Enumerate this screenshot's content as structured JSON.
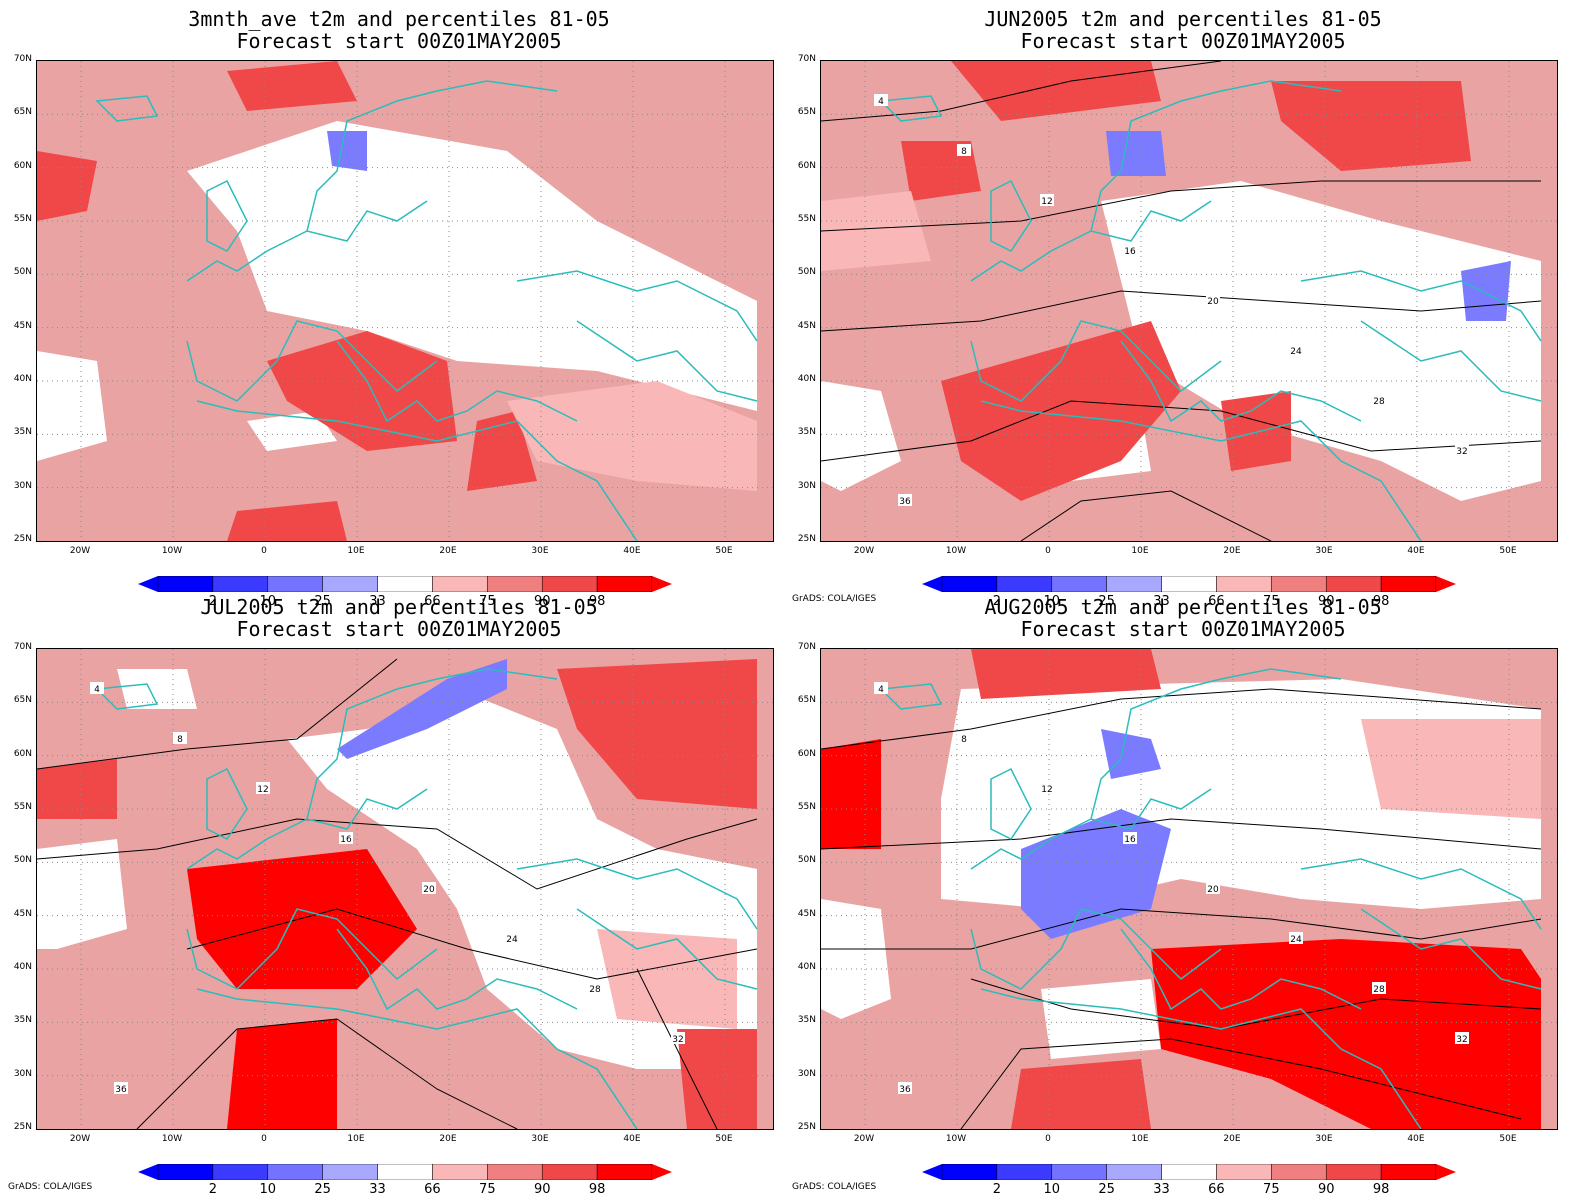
{
  "panels": [
    {
      "title": "3mnth_ave t2m and percentiles 81-05",
      "subtitle": "Forecast start 00Z01MAY2005",
      "credit": "",
      "contour_labels": []
    },
    {
      "title": "JUN2005 t2m and percentiles 81-05",
      "subtitle": "Forecast start 00Z01MAY2005",
      "credit": "GrADS: COLA/IGES",
      "contour_labels": [
        "4",
        "8",
        "12",
        "16",
        "20",
        "24",
        "28",
        "32",
        "36"
      ]
    },
    {
      "title": "JUL2005 t2m and percentiles 81-05",
      "subtitle": "Forecast start 00Z01MAY2005",
      "credit": "GrADS: COLA/IGES",
      "contour_labels": [
        "4",
        "8",
        "12",
        "16",
        "20",
        "24",
        "28",
        "32",
        "36"
      ]
    },
    {
      "title": "AUG2005 t2m and percentiles 81-05",
      "subtitle": "Forecast start 00Z01MAY2005",
      "credit": "GrADS: COLA/IGES",
      "contour_labels": [
        "4",
        "8",
        "12",
        "16",
        "20",
        "24",
        "28",
        "32",
        "36"
      ]
    }
  ],
  "axes": {
    "lat_labels": [
      "70N",
      "65N",
      "60N",
      "55N",
      "50N",
      "45N",
      "40N",
      "35N",
      "30N",
      "25N"
    ],
    "lon_labels": [
      "20W",
      "10W",
      "0",
      "10E",
      "20E",
      "30E",
      "40E",
      "50E"
    ]
  },
  "colorbar": {
    "levels": [
      "2",
      "10",
      "25",
      "33",
      "66",
      "75",
      "90",
      "98"
    ],
    "colors": [
      "#0000ff",
      "#3b3bff",
      "#7373ff",
      "#a8a8ff",
      "#ffffff",
      "#f9b7b7",
      "#f08080",
      "#f04848",
      "#ff0000"
    ]
  },
  "colors": {
    "coastline": "#2bbcbc",
    "contour": "#000000",
    "below_normal": "#7b7bff",
    "above_normal_light": "#f9b7b7",
    "above_normal_mid": "#f08080",
    "above_normal_dark": "#f04848",
    "above_normal_max": "#ff0000"
  }
}
